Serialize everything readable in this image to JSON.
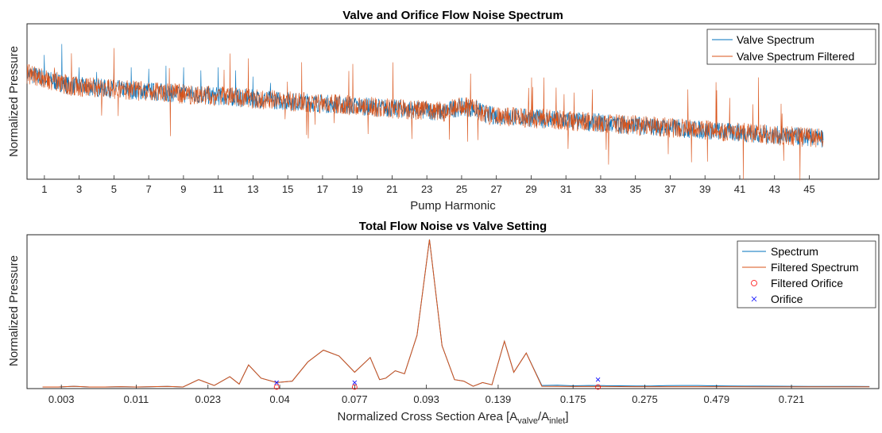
{
  "colors": {
    "spectrum": "#0072BD",
    "filtered": "#D95319",
    "filtered_orifice": "#FF0000",
    "orifice": "#0000FF",
    "axis": "#262626"
  },
  "chart_data": [
    {
      "type": "line",
      "title": "Valve and Orifice Flow Noise Spectrum",
      "xlabel": "Pump Harmonic",
      "ylabel": "Normalized Pressure",
      "xlim": [
        0,
        49
      ],
      "ylim": [
        0,
        1
      ],
      "x_tick_labels": [
        "1",
        "3",
        "5",
        "7",
        "9",
        "11",
        "13",
        "15",
        "17",
        "19",
        "21",
        "23",
        "25",
        "27",
        "29",
        "31",
        "33",
        "35",
        "37",
        "39",
        "41",
        "43",
        "45"
      ],
      "legend_location": "top-right",
      "grid": false,
      "series": [
        {
          "name": "Valve Spectrum",
          "color": "#0072BD",
          "description_values": {
            "baseline_start": 0.62,
            "baseline_end": 0.26,
            "spike_heights": [
              0.8,
              0.87,
              0.72,
              0.69,
              0.71,
              0.72,
              0.71,
              0.73,
              0.72,
              0.7,
              0.72,
              0.7,
              0.66,
              0.62
            ]
          }
        },
        {
          "name": "Valve Spectrum Filtered",
          "color": "#D95319"
        }
      ]
    },
    {
      "type": "line",
      "title": "Total Flow Noise vs Valve Setting",
      "xlabel": "Normalized Cross Section Area [A",
      "xlabel_sub1": "valve",
      "xlabel_mid": "/A",
      "xlabel_sub2": "inlet",
      "xlabel_end": "]",
      "ylabel": "Normalized Pressure",
      "x_tick_labels": [
        "0.003",
        "0.011",
        "0.023",
        "0.04",
        "0.077",
        "0.093",
        "0.139",
        "0.175",
        "0.275",
        "0.479",
        "0.721"
      ],
      "ylim": [
        0,
        1
      ],
      "legend_location": "top-right",
      "grid": false,
      "series": [
        {
          "name": "Spectrum",
          "color": "#0072BD",
          "points": [
            [
              0,
              0.0
            ],
            [
              0.5,
              0.0
            ],
            [
              1,
              0.005
            ],
            [
              1.5,
              0.0
            ],
            [
              2,
              0.0
            ],
            [
              2.5,
              0.002
            ],
            [
              3,
              0.0
            ],
            [
              4,
              0.004
            ],
            [
              4.5,
              0.0
            ],
            [
              5,
              0.05
            ],
            [
              5.5,
              0.01
            ],
            [
              6,
              0.07
            ],
            [
              6.3,
              0.02
            ],
            [
              6.6,
              0.15
            ],
            [
              7,
              0.06
            ],
            [
              7.5,
              0.03
            ],
            [
              8,
              0.04
            ],
            [
              8.5,
              0.17
            ],
            [
              9,
              0.25
            ],
            [
              9.5,
              0.21
            ],
            [
              10,
              0.1
            ],
            [
              10.5,
              0.2
            ],
            [
              10.8,
              0.05
            ],
            [
              11,
              0.06
            ],
            [
              11.3,
              0.11
            ],
            [
              11.6,
              0.09
            ],
            [
              12,
              0.35
            ],
            [
              12.4,
              1.0
            ],
            [
              12.8,
              0.28
            ],
            [
              13.2,
              0.05
            ],
            [
              13.5,
              0.04
            ],
            [
              13.8,
              0.005
            ],
            [
              14.1,
              0.03
            ],
            [
              14.4,
              0.015
            ],
            [
              14.8,
              0.31
            ],
            [
              15.1,
              0.1
            ],
            [
              15.5,
              0.23
            ],
            [
              16,
              0.01
            ],
            [
              16.5,
              0.012
            ],
            [
              17,
              0.008
            ],
            [
              17.5,
              0.01
            ],
            [
              18,
              0.009
            ],
            [
              18.5,
              0.008
            ],
            [
              19,
              0.007
            ],
            [
              19.5,
              0.007
            ],
            [
              20,
              0.009
            ],
            [
              20.5,
              0.01
            ],
            [
              21,
              0.01
            ],
            [
              21.5,
              0.008
            ],
            [
              22,
              0.007
            ],
            [
              22.5,
              0.006
            ],
            [
              23,
              0.006
            ],
            [
              24,
              0.005
            ],
            [
              25,
              0.004
            ],
            [
              26,
              0.004
            ],
            [
              26.5,
              0.003
            ]
          ]
        },
        {
          "name": "Filtered Spectrum",
          "color": "#D95319",
          "points": [
            [
              0,
              0.0
            ],
            [
              0.5,
              0.0
            ],
            [
              1,
              0.005
            ],
            [
              1.5,
              0.0
            ],
            [
              2,
              0.0
            ],
            [
              2.5,
              0.002
            ],
            [
              3,
              0.0
            ],
            [
              4,
              0.004
            ],
            [
              4.5,
              0.0
            ],
            [
              5,
              0.05
            ],
            [
              5.5,
              0.01
            ],
            [
              6,
              0.07
            ],
            [
              6.3,
              0.02
            ],
            [
              6.6,
              0.15
            ],
            [
              7,
              0.06
            ],
            [
              7.5,
              0.03
            ],
            [
              8,
              0.04
            ],
            [
              8.5,
              0.17
            ],
            [
              9,
              0.25
            ],
            [
              9.5,
              0.21
            ],
            [
              10,
              0.1
            ],
            [
              10.5,
              0.2
            ],
            [
              10.8,
              0.05
            ],
            [
              11,
              0.06
            ],
            [
              11.3,
              0.11
            ],
            [
              11.6,
              0.09
            ],
            [
              12,
              0.35
            ],
            [
              12.4,
              1.0
            ],
            [
              12.8,
              0.28
            ],
            [
              13.2,
              0.05
            ],
            [
              13.5,
              0.04
            ],
            [
              13.8,
              0.005
            ],
            [
              14.1,
              0.03
            ],
            [
              14.4,
              0.015
            ],
            [
              14.8,
              0.31
            ],
            [
              15.1,
              0.1
            ],
            [
              15.5,
              0.23
            ],
            [
              16,
              0.005
            ],
            [
              16.5,
              0.004
            ],
            [
              17,
              0.003
            ],
            [
              18,
              0.003
            ],
            [
              19,
              0.002
            ],
            [
              20,
              0.002
            ],
            [
              21,
              0.002
            ],
            [
              22,
              0.002
            ],
            [
              23,
              0.001
            ],
            [
              24,
              0.001
            ],
            [
              25,
              0.001
            ],
            [
              26,
              0.001
            ],
            [
              26.5,
              0.001
            ]
          ]
        },
        {
          "name": "Filtered Orifice",
          "color": "#FF0000",
          "marker": "o",
          "points": [
            [
              7.5,
              0.0
            ],
            [
              10,
              0.0
            ],
            [
              17.8,
              0.0
            ]
          ]
        },
        {
          "name": "Orifice",
          "color": "#0000FF",
          "marker": "x",
          "points": [
            [
              7.5,
              0.03
            ],
            [
              10,
              0.03
            ],
            [
              17.8,
              0.05
            ]
          ]
        }
      ],
      "xlim": [
        -0.5,
        26.8
      ],
      "x_tick_positions": [
        0.6,
        3.0,
        5.3,
        7.6,
        10.0,
        12.3,
        14.6,
        17.0,
        19.3,
        21.6,
        24.0
      ]
    }
  ]
}
